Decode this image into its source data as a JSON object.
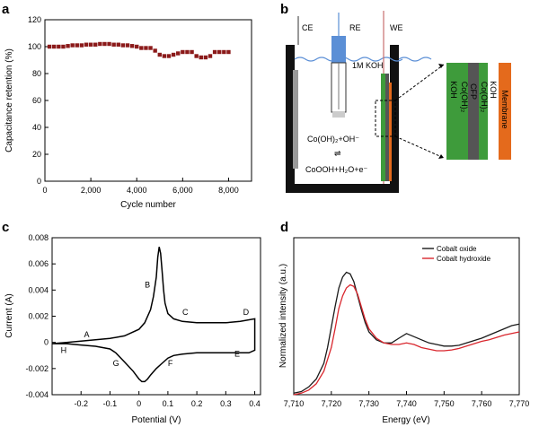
{
  "panels": {
    "a": "a",
    "b": "b",
    "c": "c",
    "d": "d"
  },
  "chart_data": [
    {
      "id": "a",
      "type": "scatter",
      "title": "",
      "xlabel": "Cycle number",
      "ylabel": "Capacitance retention (%)",
      "xlim": [
        0,
        9000
      ],
      "ylim": [
        0,
        120
      ],
      "xticks": [
        0,
        2000,
        4000,
        6000,
        8000
      ],
      "xtick_labels": [
        "0",
        "2,000",
        "4,000",
        "6,000",
        "8,000"
      ],
      "yticks": [
        0,
        20,
        40,
        60,
        80,
        100,
        120
      ],
      "ytick_labels": [
        "0",
        "20",
        "40",
        "60",
        "80",
        "100",
        "120"
      ],
      "marker_color": "#8b1a1a",
      "x": [
        200,
        400,
        600,
        800,
        1000,
        1200,
        1400,
        1600,
        1800,
        2000,
        2200,
        2400,
        2600,
        2800,
        3000,
        3200,
        3400,
        3600,
        3800,
        4000,
        4200,
        4400,
        4600,
        4800,
        5000,
        5200,
        5400,
        5600,
        5800,
        6000,
        6200,
        6400,
        6600,
        6800,
        7000,
        7200,
        7400,
        7600,
        7800,
        8000
      ],
      "y": [
        100,
        100,
        100,
        100,
        100.5,
        101,
        101,
        101,
        101.5,
        101.5,
        101.5,
        102,
        102,
        102,
        101.5,
        101.5,
        101,
        101,
        100.5,
        100,
        99,
        99,
        99,
        97,
        94,
        93,
        93,
        94,
        95,
        96,
        96,
        96,
        93,
        92,
        92,
        93,
        96,
        96,
        96,
        96
      ]
    },
    {
      "id": "c",
      "type": "line",
      "title": "",
      "xlabel": "Potential (V)",
      "ylabel": "Current (A)",
      "xlim": [
        -0.3,
        0.42
      ],
      "ylim": [
        -0.004,
        0.008
      ],
      "xticks": [
        -0.2,
        -0.1,
        0,
        0.1,
        0.2,
        0.3,
        0.4
      ],
      "xtick_labels": [
        "-0.2",
        "-0.1",
        "0",
        "0.1",
        "0.2",
        "0.3",
        "0.4"
      ],
      "yticks": [
        -0.004,
        -0.002,
        0,
        0.002,
        0.004,
        0.006,
        0.008
      ],
      "ytick_labels": [
        "-0.004",
        "-0.002",
        "0",
        "0.002",
        "0.004",
        "0.006",
        "0.008"
      ],
      "line_color": "#000000",
      "x": [
        -0.3,
        -0.25,
        -0.2,
        -0.15,
        -0.1,
        -0.05,
        0,
        0.02,
        0.04,
        0.05,
        0.06,
        0.065,
        0.07,
        0.075,
        0.08,
        0.085,
        0.09,
        0.1,
        0.12,
        0.15,
        0.2,
        0.25,
        0.3,
        0.35,
        0.4,
        0.4,
        0.38,
        0.35,
        0.3,
        0.25,
        0.2,
        0.15,
        0.12,
        0.1,
        0.08,
        0.06,
        0.04,
        0.03,
        0.02,
        0.01,
        0,
        -0.02,
        -0.05,
        -0.08,
        -0.1,
        -0.15,
        -0.2,
        -0.25,
        -0.3
      ],
      "y": [
        -0.0001,
        0,
        0.0001,
        0.0002,
        0.0003,
        0.0005,
        0.001,
        0.0015,
        0.0025,
        0.0035,
        0.005,
        0.0065,
        0.0073,
        0.0068,
        0.0055,
        0.004,
        0.003,
        0.0022,
        0.0018,
        0.0016,
        0.0015,
        0.0015,
        0.0015,
        0.0016,
        0.0018,
        -0.0006,
        -0.0008,
        -0.0008,
        -0.0008,
        -0.0008,
        -0.0008,
        -0.0009,
        -0.001,
        -0.0012,
        -0.0016,
        -0.002,
        -0.0025,
        -0.0028,
        -0.003,
        -0.003,
        -0.0028,
        -0.0022,
        -0.0015,
        -0.0008,
        -0.0005,
        -0.0003,
        -0.0002,
        -0.0001,
        -0.0001
      ],
      "annotations": [
        {
          "text": "A",
          "x": -0.19,
          "y": 0.0004
        },
        {
          "text": "B",
          "x": 0.02,
          "y": 0.0042
        },
        {
          "text": "C",
          "x": 0.15,
          "y": 0.0021
        },
        {
          "text": "D",
          "x": 0.36,
          "y": 0.0021
        },
        {
          "text": "E",
          "x": 0.33,
          "y": -0.0011
        },
        {
          "text": "F",
          "x": 0.1,
          "y": -0.0018
        },
        {
          "text": "G",
          "x": -0.09,
          "y": -0.0018
        },
        {
          "text": "H",
          "x": -0.27,
          "y": -0.0008
        }
      ]
    },
    {
      "id": "d",
      "type": "line",
      "title": "",
      "xlabel": "Energy (eV)",
      "ylabel": "Normalized intensity (a.u.)",
      "xlim": [
        7710,
        7770
      ],
      "xticks": [
        7710,
        7720,
        7730,
        7740,
        7750,
        7760,
        7770
      ],
      "xtick_labels": [
        "7,710",
        "7,720",
        "7,730",
        "7,740",
        "7,750",
        "7,760",
        "7,770"
      ],
      "yticks": [],
      "ylim": [
        0,
        1
      ],
      "legend_position": "top-right",
      "series": [
        {
          "name": "Cobalt oxide",
          "color": "#1a1a1a",
          "x": [
            7710,
            7712,
            7714,
            7716,
            7718,
            7719,
            7720,
            7721,
            7722,
            7723,
            7724,
            7725,
            7726,
            7727,
            7728,
            7729,
            7730,
            7732,
            7734,
            7736,
            7738,
            7740,
            7742,
            7744,
            7746,
            7748,
            7750,
            7752,
            7754,
            7756,
            7758,
            7760,
            7762,
            7764,
            7766,
            7768,
            7770
          ],
          "y": [
            0.01,
            0.02,
            0.05,
            0.1,
            0.2,
            0.3,
            0.43,
            0.56,
            0.68,
            0.75,
            0.78,
            0.77,
            0.72,
            0.63,
            0.54,
            0.46,
            0.4,
            0.35,
            0.33,
            0.33,
            0.36,
            0.39,
            0.37,
            0.35,
            0.33,
            0.32,
            0.31,
            0.31,
            0.315,
            0.33,
            0.345,
            0.36,
            0.38,
            0.4,
            0.42,
            0.44,
            0.45
          ]
        },
        {
          "name": "Cobalt hydroxide",
          "color": "#d9262d",
          "x": [
            7710,
            7712,
            7714,
            7716,
            7718,
            7720,
            7721,
            7722,
            7723,
            7724,
            7725,
            7726,
            7727,
            7728,
            7729,
            7730,
            7732,
            7734,
            7736,
            7738,
            7740,
            7742,
            7744,
            7746,
            7748,
            7750,
            7752,
            7754,
            7756,
            7758,
            7760,
            7762,
            7764,
            7766,
            7768,
            7770
          ],
          "y": [
            0,
            0.01,
            0.03,
            0.07,
            0.15,
            0.3,
            0.42,
            0.55,
            0.63,
            0.68,
            0.7,
            0.69,
            0.64,
            0.56,
            0.48,
            0.42,
            0.36,
            0.33,
            0.32,
            0.32,
            0.33,
            0.32,
            0.3,
            0.29,
            0.28,
            0.28,
            0.285,
            0.295,
            0.31,
            0.325,
            0.34,
            0.35,
            0.365,
            0.38,
            0.39,
            0.4
          ]
        }
      ]
    }
  ],
  "schematic": {
    "electrode_labels": [
      "CE",
      "RE",
      "WE"
    ],
    "electrolyte": "1M KOH",
    "reaction_forward": "Co(OH)₂+OH⁻",
    "reaction_arrow": "⇌",
    "reaction_product": "CoOOH+H₂O+e⁻",
    "layers": [
      "KOH",
      "Co(OH)₂",
      "CFP",
      "Co(OH)₂",
      "KOH",
      "Membrane"
    ],
    "colors": {
      "green": "#3e9b3b",
      "gray": "#555555",
      "orange": "#e46a1c",
      "blue": "#5b8fd6",
      "black": "#111111"
    }
  }
}
